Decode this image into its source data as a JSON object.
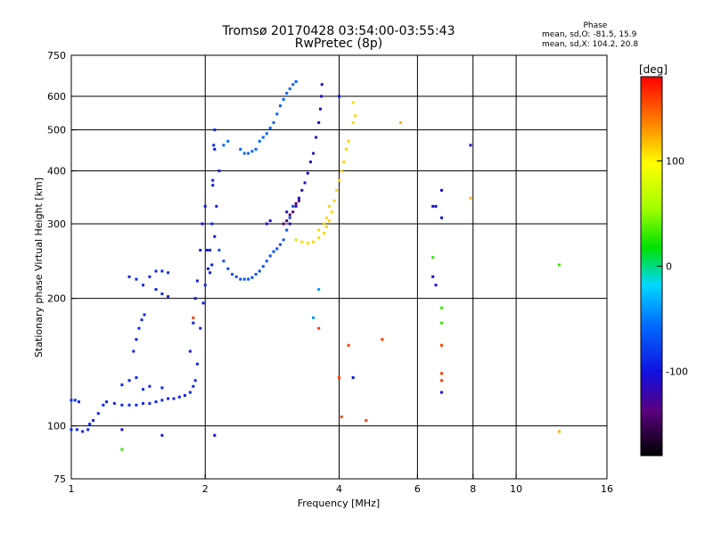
{
  "header": {
    "title_line1": "Tromsø 20170428 03:54:00-03:55:43",
    "title_line2": "RwPretec (8p)",
    "phase_title": "Phase",
    "phase_line1": "mean, sd,O: -81.5, 15.9",
    "phase_line2": "mean, sd,X: 104.2, 20.8"
  },
  "colorbar": {
    "label": "[deg]",
    "ticks": [
      {
        "value": 100,
        "label": "100"
      },
      {
        "value": 0,
        "label": "0"
      },
      {
        "value": -100,
        "label": "-100"
      }
    ],
    "range": [
      -180,
      180
    ]
  },
  "chart_data": {
    "type": "scatter",
    "xlabel": "Frequency [MHz]",
    "ylabel": "Stationary phase Virtual Height [km]",
    "xscale": "log",
    "yscale": "log",
    "xlim": [
      1,
      16
    ],
    "ylim": [
      75,
      750
    ],
    "xticks": [
      {
        "v": 1,
        "l": "1"
      },
      {
        "v": 2,
        "l": "2"
      },
      {
        "v": 4,
        "l": "4"
      },
      {
        "v": 6,
        "l": "6"
      },
      {
        "v": 8,
        "l": "8"
      },
      {
        "v": 10,
        "l": "10"
      },
      {
        "v": 16,
        "l": "16"
      }
    ],
    "xgrid": [
      2,
      4,
      6,
      8,
      10
    ],
    "yticks": [
      {
        "v": 75,
        "l": "75"
      },
      {
        "v": 100,
        "l": "100"
      },
      {
        "v": 200,
        "l": "200"
      },
      {
        "v": 300,
        "l": "300"
      },
      {
        "v": 400,
        "l": "400"
      },
      {
        "v": 500,
        "l": "500"
      },
      {
        "v": 600,
        "l": "600"
      },
      {
        "v": 750,
        "l": "750"
      }
    ],
    "ygrid": [
      100,
      200,
      300,
      400,
      500,
      600
    ],
    "grid": true,
    "series": [
      {
        "phase": -90,
        "points": [
          [
            1.0,
            98
          ],
          [
            1.03,
            98
          ],
          [
            1.06,
            97
          ],
          [
            1.09,
            98
          ],
          [
            1.1,
            101
          ],
          [
            1.12,
            103
          ],
          [
            1.15,
            107
          ],
          [
            1.18,
            112
          ],
          [
            1.2,
            114
          ],
          [
            1.25,
            113
          ],
          [
            1.3,
            112
          ],
          [
            1.35,
            112
          ],
          [
            1.4,
            112
          ],
          [
            1.45,
            113
          ],
          [
            1.5,
            113
          ],
          [
            1.55,
            114
          ],
          [
            1.6,
            115
          ],
          [
            1.65,
            116
          ],
          [
            1.7,
            116
          ],
          [
            1.75,
            117
          ],
          [
            1.8,
            118
          ],
          [
            1.85,
            120
          ],
          [
            1.88,
            124
          ],
          [
            1.9,
            128
          ],
          [
            1.92,
            140
          ],
          [
            1.95,
            170
          ],
          [
            1.98,
            195
          ],
          [
            2.0,
            215
          ],
          [
            2.03,
            235
          ],
          [
            2.05,
            260
          ],
          [
            2.07,
            300
          ],
          [
            2.08,
            380
          ],
          [
            2.09,
            460
          ],
          [
            2.1,
            500
          ]
        ]
      },
      {
        "phase": -90,
        "points": [
          [
            1.0,
            115
          ],
          [
            1.02,
            115
          ],
          [
            1.04,
            114
          ],
          [
            1.3,
            125
          ],
          [
            1.35,
            128
          ],
          [
            1.4,
            130
          ],
          [
            1.45,
            122
          ],
          [
            1.5,
            124
          ],
          [
            1.6,
            123
          ],
          [
            1.38,
            150
          ],
          [
            1.4,
            160
          ],
          [
            1.42,
            170
          ],
          [
            1.44,
            178
          ],
          [
            1.46,
            183
          ],
          [
            1.45,
            215
          ],
          [
            1.5,
            225
          ],
          [
            1.55,
            232
          ],
          [
            1.6,
            232
          ],
          [
            1.65,
            230
          ],
          [
            1.55,
            210
          ],
          [
            1.6,
            205
          ],
          [
            1.65,
            202
          ],
          [
            1.35,
            225
          ],
          [
            1.4,
            222
          ]
        ]
      },
      {
        "phase": -95,
        "points": [
          [
            1.85,
            150
          ],
          [
            1.88,
            175
          ],
          [
            1.9,
            200
          ],
          [
            1.92,
            220
          ],
          [
            1.95,
            260
          ],
          [
            1.97,
            300
          ],
          [
            2.0,
            330
          ],
          [
            2.02,
            260
          ],
          [
            2.05,
            230
          ],
          [
            2.07,
            240
          ],
          [
            2.1,
            280
          ],
          [
            2.12,
            330
          ],
          [
            2.15,
            400
          ],
          [
            2.1,
            450
          ],
          [
            2.08,
            370
          ]
        ]
      },
      {
        "phase": -70,
        "points": [
          [
            2.15,
            260
          ],
          [
            2.2,
            245
          ],
          [
            2.25,
            235
          ],
          [
            2.3,
            228
          ],
          [
            2.35,
            225
          ],
          [
            2.4,
            222
          ],
          [
            2.45,
            222
          ],
          [
            2.5,
            222
          ],
          [
            2.55,
            224
          ],
          [
            2.6,
            228
          ],
          [
            2.65,
            232
          ],
          [
            2.7,
            238
          ],
          [
            2.75,
            245
          ],
          [
            2.8,
            252
          ],
          [
            2.85,
            258
          ],
          [
            2.9,
            262
          ],
          [
            2.95,
            268
          ],
          [
            3.0,
            275
          ],
          [
            3.05,
            290
          ],
          [
            3.1,
            310
          ],
          [
            3.15,
            330
          ]
        ]
      },
      {
        "phase": -60,
        "points": [
          [
            2.4,
            450
          ],
          [
            2.45,
            440
          ],
          [
            2.5,
            440
          ],
          [
            2.55,
            445
          ],
          [
            2.6,
            450
          ],
          [
            2.65,
            470
          ],
          [
            2.7,
            480
          ],
          [
            2.75,
            490
          ],
          [
            2.8,
            505
          ],
          [
            2.85,
            520
          ],
          [
            2.9,
            545
          ],
          [
            2.95,
            570
          ],
          [
            3.0,
            590
          ],
          [
            3.05,
            610
          ],
          [
            3.1,
            625
          ],
          [
            3.15,
            640
          ],
          [
            3.2,
            650
          ],
          [
            2.2,
            460
          ],
          [
            2.25,
            470
          ]
        ]
      },
      {
        "phase": -110,
        "points": [
          [
            3.2,
            330
          ],
          [
            3.25,
            345
          ],
          [
            3.3,
            360
          ],
          [
            3.35,
            375
          ],
          [
            3.4,
            395
          ],
          [
            3.45,
            420
          ],
          [
            3.5,
            440
          ],
          [
            3.55,
            480
          ],
          [
            3.6,
            520
          ],
          [
            3.63,
            560
          ],
          [
            3.65,
            600
          ],
          [
            3.66,
            640
          ],
          [
            3.1,
            300
          ],
          [
            3.05,
            320
          ],
          [
            2.75,
            300
          ],
          [
            2.8,
            305
          ]
        ]
      },
      {
        "phase": -140,
        "points": [
          [
            3.0,
            300
          ],
          [
            3.05,
            305
          ],
          [
            3.1,
            315
          ],
          [
            3.15,
            320
          ],
          [
            3.2,
            335
          ],
          [
            3.25,
            340
          ]
        ]
      },
      {
        "phase": 110,
        "points": [
          [
            3.2,
            275
          ],
          [
            3.3,
            272
          ],
          [
            3.4,
            270
          ],
          [
            3.5,
            272
          ],
          [
            3.6,
            278
          ],
          [
            3.7,
            285
          ],
          [
            3.75,
            295
          ],
          [
            3.8,
            305
          ],
          [
            3.85,
            320
          ],
          [
            3.9,
            340
          ],
          [
            3.95,
            360
          ],
          [
            4.0,
            380
          ],
          [
            4.05,
            400
          ],
          [
            4.1,
            420
          ],
          [
            4.15,
            450
          ],
          [
            4.2,
            470
          ],
          [
            3.6,
            290
          ],
          [
            3.7,
            300
          ],
          [
            3.75,
            310
          ],
          [
            3.8,
            330
          ],
          [
            4.3,
            520
          ],
          [
            4.35,
            540
          ],
          [
            4.3,
            580
          ]
        ]
      },
      {
        "phase": 160,
        "points": [
          [
            1.88,
            180
          ],
          [
            3.6,
            170
          ],
          [
            4.0,
            130
          ],
          [
            4.05,
            105
          ],
          [
            4.2,
            155
          ],
          [
            4.6,
            103
          ],
          [
            5.0,
            160
          ],
          [
            6.8,
            155
          ],
          [
            6.8,
            133
          ],
          [
            6.8,
            128
          ]
        ]
      },
      {
        "phase": 120,
        "points": [
          [
            5.5,
            520
          ],
          [
            7.9,
            345
          ],
          [
            12.5,
            97
          ]
        ]
      },
      {
        "phase": -100,
        "points": [
          [
            6.5,
            330
          ],
          [
            6.6,
            330
          ],
          [
            6.8,
            360
          ],
          [
            6.8,
            310
          ],
          [
            6.5,
            225
          ],
          [
            6.6,
            215
          ],
          [
            6.8,
            120
          ],
          [
            4.3,
            130
          ],
          [
            4.0,
            600
          ],
          [
            7.9,
            460
          ],
          [
            2.1,
            95
          ],
          [
            1.6,
            95
          ],
          [
            1.3,
            98
          ]
        ]
      },
      {
        "phase": 30,
        "points": [
          [
            6.5,
            250
          ],
          [
            6.8,
            190
          ],
          [
            6.8,
            175
          ],
          [
            12.5,
            240
          ],
          [
            1.3,
            88
          ]
        ]
      },
      {
        "phase": -40,
        "points": [
          [
            3.6,
            210
          ],
          [
            3.5,
            180
          ]
        ]
      }
    ]
  }
}
